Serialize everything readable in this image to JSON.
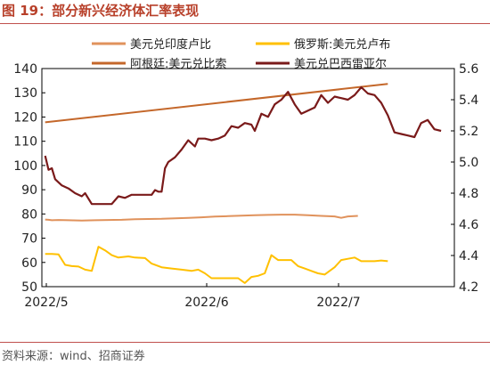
{
  "figure": {
    "number_label": "图 19：",
    "title": "部分新兴经济体汇率表现",
    "source": "资料来源：wind、招商证券"
  },
  "colors": {
    "accent_red": "#c0504d",
    "inr": "#e0925c",
    "ars": "#c4672a",
    "rub": "#ffc000",
    "brl": "#7a1a1a"
  },
  "chart_data": {
    "type": "line",
    "title": "",
    "xlabel": "",
    "ylabel": "",
    "x_ticks": [
      "2022/5",
      "2022/6",
      "2022/7"
    ],
    "x": [
      "2022-05-01",
      "2022-07-31"
    ],
    "y_left": {
      "ylim": [
        50,
        140
      ],
      "ticks": [
        50,
        60,
        70,
        80,
        90,
        100,
        110,
        120,
        130,
        140
      ]
    },
    "y_right": {
      "ylim": [
        4.2,
        5.6
      ],
      "ticks": [
        4.2,
        4.4,
        4.6,
        4.8,
        5.0,
        5.2,
        5.4,
        5.6
      ]
    },
    "grid": false,
    "legend_placement": "top",
    "series": [
      {
        "name": "美元兑印度卢比",
        "axis": "left",
        "color": "#e0925c",
        "values": [
          [
            1,
            77.7
          ],
          [
            2,
            77.6
          ],
          [
            3,
            77.4
          ],
          [
            5,
            77.5
          ],
          [
            8,
            77.4
          ],
          [
            12,
            77.3
          ],
          [
            16,
            77.4
          ],
          [
            20,
            77.5
          ],
          [
            24,
            77.6
          ],
          [
            28,
            77.8
          ],
          [
            32,
            77.9
          ],
          [
            36,
            78.0
          ],
          [
            40,
            78.2
          ],
          [
            44,
            78.4
          ],
          [
            48,
            78.6
          ],
          [
            52,
            78.9
          ],
          [
            56,
            79.1
          ],
          [
            60,
            79.3
          ],
          [
            64,
            79.5
          ],
          [
            68,
            79.6
          ],
          [
            72,
            79.7
          ],
          [
            76,
            79.7
          ],
          [
            80,
            79.5
          ],
          [
            84,
            79.2
          ],
          [
            88,
            79.0
          ],
          [
            90,
            78.4
          ],
          [
            92,
            79.0
          ],
          [
            95,
            79.2
          ]
        ]
      },
      {
        "name": "俄罗斯:美元兑卢布",
        "axis": "left",
        "color": "#ffc000",
        "values": [
          [
            1,
            63.5
          ],
          [
            3,
            63.5
          ],
          [
            5,
            63.3
          ],
          [
            7,
            59.0
          ],
          [
            9,
            58.5
          ],
          [
            11,
            58.3
          ],
          [
            13,
            57.0
          ],
          [
            15,
            56.5
          ],
          [
            17,
            66.5
          ],
          [
            19,
            65.0
          ],
          [
            21,
            63.0
          ],
          [
            23,
            62.0
          ],
          [
            26,
            62.5
          ],
          [
            28,
            62.0
          ],
          [
            31,
            61.8
          ],
          [
            33,
            59.5
          ],
          [
            36,
            58.0
          ],
          [
            39,
            57.5
          ],
          [
            42,
            57.0
          ],
          [
            45,
            56.5
          ],
          [
            47,
            57.0
          ],
          [
            49,
            55.5
          ],
          [
            51,
            53.5
          ],
          [
            55,
            53.5
          ],
          [
            59,
            53.5
          ],
          [
            61,
            51.5
          ],
          [
            63,
            54.0
          ],
          [
            65,
            54.5
          ],
          [
            67,
            55.5
          ],
          [
            69,
            63.0
          ],
          [
            71,
            61.0
          ],
          [
            73,
            61.0
          ],
          [
            75,
            61.0
          ],
          [
            77,
            58.5
          ],
          [
            79,
            57.5
          ],
          [
            81,
            56.5
          ],
          [
            83,
            55.5
          ],
          [
            85,
            55.0
          ],
          [
            86,
            56.0
          ],
          [
            88,
            58.0
          ],
          [
            90,
            61.0
          ],
          [
            92,
            61.5
          ],
          [
            94,
            62.0
          ],
          [
            96,
            60.5
          ],
          [
            98,
            60.5
          ],
          [
            100,
            60.5
          ],
          [
            102,
            60.8
          ],
          [
            104,
            60.5
          ]
        ]
      },
      {
        "name": "阿根廷:美元兑比索",
        "axis": "left",
        "color": "#c4672a",
        "values": [
          [
            1,
            117.8
          ],
          [
            104,
            133.7
          ]
        ]
      },
      {
        "name": "美元兑巴西雷亚尔",
        "axis": "right",
        "color": "#7a1a1a",
        "values": [
          [
            1,
            5.04
          ],
          [
            2,
            4.95
          ],
          [
            3,
            4.96
          ],
          [
            4,
            4.89
          ],
          [
            6,
            4.85
          ],
          [
            8,
            4.83
          ],
          [
            10,
            4.8
          ],
          [
            12,
            4.78
          ],
          [
            13,
            4.8
          ],
          [
            15,
            4.73
          ],
          [
            18,
            4.73
          ],
          [
            21,
            4.73
          ],
          [
            23,
            4.78
          ],
          [
            25,
            4.77
          ],
          [
            27,
            4.79
          ],
          [
            29,
            4.79
          ],
          [
            31,
            4.79
          ],
          [
            33,
            4.79
          ],
          [
            34,
            4.82
          ],
          [
            35,
            4.81
          ],
          [
            36,
            4.81
          ],
          [
            37,
            4.96
          ],
          [
            38,
            5.0
          ],
          [
            40,
            5.03
          ],
          [
            42,
            5.08
          ],
          [
            44,
            5.14
          ],
          [
            45,
            5.12
          ],
          [
            46,
            5.1
          ],
          [
            47,
            5.15
          ],
          [
            49,
            5.15
          ],
          [
            51,
            5.14
          ],
          [
            53,
            5.15
          ],
          [
            55,
            5.17
          ],
          [
            57,
            5.23
          ],
          [
            59,
            5.22
          ],
          [
            61,
            5.25
          ],
          [
            63,
            5.24
          ],
          [
            64,
            5.2
          ],
          [
            66,
            5.31
          ],
          [
            68,
            5.29
          ],
          [
            70,
            5.37
          ],
          [
            72,
            5.4
          ],
          [
            74,
            5.45
          ],
          [
            76,
            5.37
          ],
          [
            78,
            5.31
          ],
          [
            80,
            5.33
          ],
          [
            82,
            5.35
          ],
          [
            84,
            5.43
          ],
          [
            86,
            5.38
          ],
          [
            88,
            5.42
          ],
          [
            90,
            5.41
          ],
          [
            92,
            5.4
          ],
          [
            94,
            5.43
          ],
          [
            96,
            5.48
          ],
          [
            98,
            5.44
          ],
          [
            100,
            5.43
          ],
          [
            102,
            5.38
          ],
          [
            104,
            5.3
          ],
          [
            106,
            5.19
          ],
          [
            108,
            5.18
          ],
          [
            110,
            5.17
          ],
          [
            112,
            5.16
          ],
          [
            114,
            5.25
          ],
          [
            116,
            5.27
          ],
          [
            118,
            5.21
          ],
          [
            120,
            5.2
          ]
        ]
      }
    ]
  }
}
